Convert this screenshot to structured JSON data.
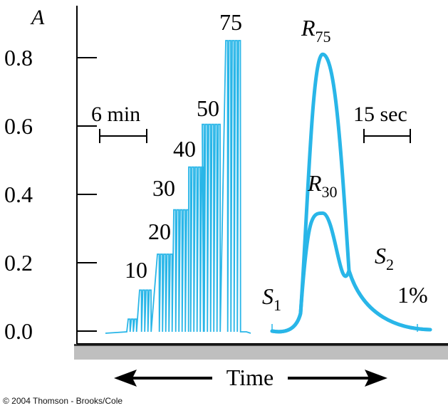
{
  "credit": "© 2004 Thomson - Brooks/Cole",
  "chart_data": {
    "type": "line",
    "ylabel": "A",
    "xlabel": "Time",
    "yticks": [
      "0.0",
      "0.2",
      "0.4",
      "0.6",
      "0.8"
    ],
    "ylim": [
      0,
      0.85
    ],
    "color": "#29b6e8",
    "left_panel": {
      "scale_bar_label": "6 min",
      "series": [
        {
          "name": "1",
          "peak": 0.035
        },
        {
          "name": "10",
          "peak": 0.12
        },
        {
          "name": "20",
          "peak": 0.225
        },
        {
          "name": "30",
          "peak": 0.355
        },
        {
          "name": "40",
          "peak": 0.48
        },
        {
          "name": "50",
          "peak": 0.605
        },
        {
          "name": "75",
          "peak": 0.85
        }
      ],
      "group_labels": [
        "10",
        "20",
        "30",
        "40",
        "50",
        "75"
      ]
    },
    "right_panel": {
      "scale_bar_label": "15 sec",
      "labels": {
        "s1_main": "S",
        "s1_sub": "1",
        "s2_main": "S",
        "s2_sub": "2",
        "r75_main": "R",
        "r75_sub": "75",
        "r30_main": "R",
        "r30_sub": "30",
        "pct": "1%"
      },
      "series": [
        {
          "name": "R75",
          "peak": 0.81
        },
        {
          "name": "R30",
          "peak": 0.345
        }
      ]
    }
  }
}
